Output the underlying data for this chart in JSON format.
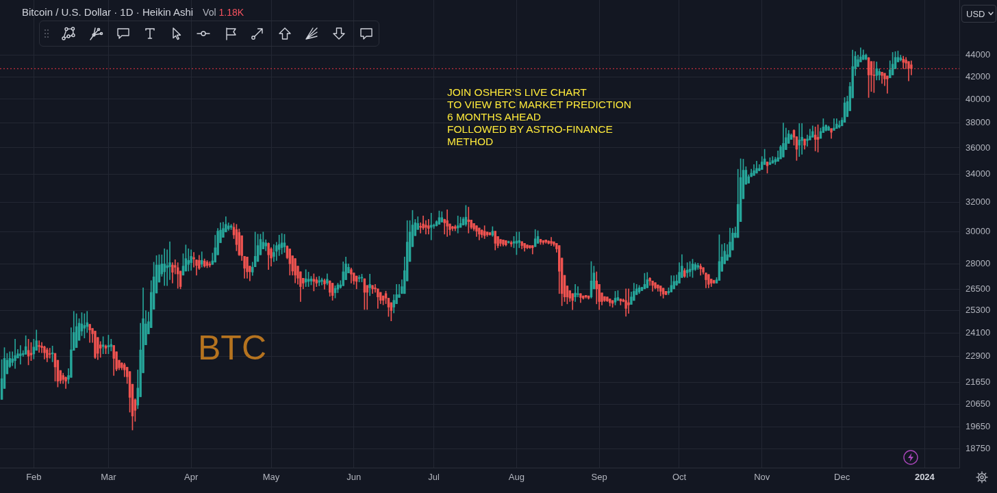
{
  "chart_data": {
    "type": "candlestick",
    "title": "Bitcoin / U.S. Dollar · 1D · Heikin Ashi",
    "annotations": [
      "Vol 1.18K",
      "JOIN OSHER’S LIVE CHART\nTO VIEW BTC MARKET PREDICTION\n6 MONTHS AHEAD\nFOLLOWED BY ASTRO-FINANCE\nMETHOD",
      "BTC",
      "USD"
    ],
    "log": true,
    "grid": true,
    "xlim": [
      "2023-01-19T08:00",
      "2024-01-14"
    ],
    "ylim": [
      18000,
      49600
    ],
    "xticks": [
      {
        "value": "2023-02-01",
        "label": "Feb"
      },
      {
        "value": "2023-03-01",
        "label": "Mar"
      },
      {
        "value": "2023-04-01",
        "label": "Apr"
      },
      {
        "value": "2023-05-01",
        "label": "May"
      },
      {
        "value": "2023-06-01",
        "label": "Jun"
      },
      {
        "value": "2023-07-01",
        "label": "Jul"
      },
      {
        "value": "2023-08-01",
        "label": "Aug"
      },
      {
        "value": "2023-09-01",
        "label": "Sep"
      },
      {
        "value": "2023-10-01",
        "label": "Oct"
      },
      {
        "value": "2023-11-01",
        "label": "Nov"
      },
      {
        "value": "2023-12-01",
        "label": "Dec"
      },
      {
        "value": "2024-01-01",
        "label": "2024"
      }
    ],
    "yticks": [
      18750,
      19650,
      20650,
      21650,
      22900,
      24100,
      25300,
      26500,
      28000,
      30000,
      32000,
      34000,
      36000,
      38000,
      40000,
      42000,
      44000
    ],
    "ref_lines": [
      {
        "axis": "y",
        "value": 42740,
        "color": "#f23645",
        "line_style": "dotted"
      }
    ],
    "x": [
      "2023-01-20",
      "2023-01-21",
      "2023-01-22",
      "2023-01-23",
      "2023-01-24",
      "2023-01-25",
      "2023-01-26",
      "2023-01-27",
      "2023-01-28",
      "2023-01-29",
      "2023-01-30",
      "2023-01-31",
      "2023-02-01",
      "2023-02-02",
      "2023-02-03",
      "2023-02-04",
      "2023-02-05",
      "2023-02-06",
      "2023-02-07",
      "2023-02-08",
      "2023-02-09",
      "2023-02-10",
      "2023-02-11",
      "2023-02-12",
      "2023-02-13",
      "2023-02-14",
      "2023-02-15",
      "2023-02-16",
      "2023-02-17",
      "2023-02-18",
      "2023-02-19",
      "2023-02-20",
      "2023-02-21",
      "2023-02-22",
      "2023-02-23",
      "2023-02-24",
      "2023-02-25",
      "2023-02-26",
      "2023-02-27",
      "2023-02-28",
      "2023-03-01",
      "2023-03-02",
      "2023-03-03",
      "2023-03-04",
      "2023-03-05",
      "2023-03-06",
      "2023-03-07",
      "2023-03-08",
      "2023-03-09",
      "2023-03-10",
      "2023-03-11",
      "2023-03-12",
      "2023-03-13",
      "2023-03-14",
      "2023-03-15",
      "2023-03-16",
      "2023-03-17",
      "2023-03-18",
      "2023-03-19",
      "2023-03-20",
      "2023-03-21",
      "2023-03-22",
      "2023-03-23",
      "2023-03-24",
      "2023-03-25",
      "2023-03-26",
      "2023-03-27",
      "2023-03-28",
      "2023-03-29",
      "2023-03-30",
      "2023-03-31",
      "2023-04-01",
      "2023-04-02",
      "2023-04-03",
      "2023-04-04",
      "2023-04-05",
      "2023-04-06",
      "2023-04-07",
      "2023-04-08",
      "2023-04-09",
      "2023-04-10",
      "2023-04-11",
      "2023-04-12",
      "2023-04-13",
      "2023-04-14",
      "2023-04-15",
      "2023-04-16",
      "2023-04-17",
      "2023-04-18",
      "2023-04-19",
      "2023-04-20",
      "2023-04-21",
      "2023-04-22",
      "2023-04-23",
      "2023-04-24",
      "2023-04-25",
      "2023-04-26",
      "2023-04-27",
      "2023-04-28",
      "2023-04-29",
      "2023-04-30",
      "2023-05-01",
      "2023-05-02",
      "2023-05-03",
      "2023-05-04",
      "2023-05-05",
      "2023-05-06",
      "2023-05-07",
      "2023-05-08",
      "2023-05-09",
      "2023-05-10",
      "2023-05-11",
      "2023-05-12",
      "2023-05-13",
      "2023-05-14",
      "2023-05-15",
      "2023-05-16",
      "2023-05-17",
      "2023-05-18",
      "2023-05-19",
      "2023-05-20",
      "2023-05-21",
      "2023-05-22",
      "2023-05-23",
      "2023-05-24",
      "2023-05-25",
      "2023-05-26",
      "2023-05-27",
      "2023-05-28",
      "2023-05-29",
      "2023-05-30",
      "2023-05-31",
      "2023-06-01",
      "2023-06-02",
      "2023-06-03",
      "2023-06-04",
      "2023-06-05",
      "2023-06-06",
      "2023-06-07",
      "2023-06-08",
      "2023-06-09",
      "2023-06-10",
      "2023-06-11",
      "2023-06-12",
      "2023-06-13",
      "2023-06-14",
      "2023-06-15",
      "2023-06-16",
      "2023-06-17",
      "2023-06-18",
      "2023-06-19",
      "2023-06-20",
      "2023-06-21",
      "2023-06-22",
      "2023-06-23",
      "2023-06-24",
      "2023-06-25",
      "2023-06-26",
      "2023-06-27",
      "2023-06-28",
      "2023-06-29",
      "2023-06-30",
      "2023-07-01",
      "2023-07-02",
      "2023-07-03",
      "2023-07-04",
      "2023-07-05",
      "2023-07-06",
      "2023-07-07",
      "2023-07-08",
      "2023-07-09",
      "2023-07-10",
      "2023-07-11",
      "2023-07-12",
      "2023-07-13",
      "2023-07-14",
      "2023-07-15",
      "2023-07-16",
      "2023-07-17",
      "2023-07-18",
      "2023-07-19",
      "2023-07-20",
      "2023-07-21",
      "2023-07-22",
      "2023-07-23",
      "2023-07-24",
      "2023-07-25",
      "2023-07-26",
      "2023-07-27",
      "2023-07-28",
      "2023-07-29",
      "2023-07-30",
      "2023-07-31",
      "2023-08-01",
      "2023-08-02",
      "2023-08-03",
      "2023-08-04",
      "2023-08-05",
      "2023-08-06",
      "2023-08-07",
      "2023-08-08",
      "2023-08-09",
      "2023-08-10",
      "2023-08-11",
      "2023-08-12",
      "2023-08-13",
      "2023-08-14",
      "2023-08-15",
      "2023-08-16",
      "2023-08-17",
      "2023-08-18",
      "2023-08-19",
      "2023-08-20",
      "2023-08-21",
      "2023-08-22",
      "2023-08-23",
      "2023-08-24",
      "2023-08-25",
      "2023-08-26",
      "2023-08-27",
      "2023-08-28",
      "2023-08-29",
      "2023-08-30",
      "2023-08-31",
      "2023-09-01",
      "2023-09-02",
      "2023-09-03",
      "2023-09-04",
      "2023-09-05",
      "2023-09-06",
      "2023-09-07",
      "2023-09-08",
      "2023-09-09",
      "2023-09-10",
      "2023-09-11",
      "2023-09-12",
      "2023-09-13",
      "2023-09-14",
      "2023-09-15",
      "2023-09-16",
      "2023-09-17",
      "2023-09-18",
      "2023-09-19",
      "2023-09-20",
      "2023-09-21",
      "2023-09-22",
      "2023-09-23",
      "2023-09-24",
      "2023-09-25",
      "2023-09-26",
      "2023-09-27",
      "2023-09-28",
      "2023-09-29",
      "2023-09-30",
      "2023-10-01",
      "2023-10-02",
      "2023-10-03",
      "2023-10-04",
      "2023-10-05",
      "2023-10-06",
      "2023-10-07",
      "2023-10-08",
      "2023-10-09",
      "2023-10-10",
      "2023-10-11",
      "2023-10-12",
      "2023-10-13",
      "2023-10-14",
      "2023-10-15",
      "2023-10-16",
      "2023-10-17",
      "2023-10-18",
      "2023-10-19",
      "2023-10-20",
      "2023-10-21",
      "2023-10-22",
      "2023-10-23",
      "2023-10-24",
      "2023-10-25",
      "2023-10-26",
      "2023-10-27",
      "2023-10-28",
      "2023-10-29",
      "2023-10-30",
      "2023-10-31",
      "2023-11-01",
      "2023-11-02",
      "2023-11-03",
      "2023-11-04",
      "2023-11-05",
      "2023-11-06",
      "2023-11-07",
      "2023-11-08",
      "2023-11-09",
      "2023-11-10",
      "2023-11-11",
      "2023-11-12",
      "2023-11-13",
      "2023-11-14",
      "2023-11-15",
      "2023-11-16",
      "2023-11-17",
      "2023-11-18",
      "2023-11-19",
      "2023-11-20",
      "2023-11-21",
      "2023-11-22",
      "2023-11-23",
      "2023-11-24",
      "2023-11-25",
      "2023-11-26",
      "2023-11-27",
      "2023-11-28",
      "2023-11-29",
      "2023-11-30",
      "2023-12-01",
      "2023-12-02",
      "2023-12-03",
      "2023-12-04",
      "2023-12-05",
      "2023-12-06",
      "2023-12-07",
      "2023-12-08",
      "2023-12-09",
      "2023-12-10",
      "2023-12-11",
      "2023-12-12",
      "2023-12-13",
      "2023-12-14",
      "2023-12-15",
      "2023-12-16",
      "2023-12-17",
      "2023-12-18",
      "2023-12-19",
      "2023-12-20",
      "2023-12-21",
      "2023-12-22",
      "2023-12-23",
      "2023-12-24",
      "2023-12-25",
      "2023-12-26",
      "2023-12-27"
    ],
    "ohlc": [
      [
        20870,
        22750,
        20870,
        21830
      ],
      [
        21370,
        23350,
        21370,
        22810
      ],
      [
        22060,
        23060,
        22060,
        22720
      ],
      [
        22410,
        23140,
        22360,
        22810
      ],
      [
        22610,
        23140,
        22450,
        22790
      ],
      [
        22700,
        23780,
        22320,
        22950
      ],
      [
        22830,
        23260,
        22830,
        23040
      ],
      [
        22940,
        23460,
        22520,
        23040
      ],
      [
        22990,
        23200,
        22900,
        23060
      ],
      [
        23020,
        23960,
        23000,
        23400
      ],
      [
        23210,
        23780,
        22490,
        22920
      ],
      [
        23070,
        23610,
        22700,
        22980
      ],
      [
        23030,
        23780,
        22780,
        23380
      ],
      [
        23210,
        24260,
        23210,
        23700
      ],
      [
        23460,
        23700,
        23110,
        23400
      ],
      [
        23430,
        23610,
        23090,
        23350
      ],
      [
        23390,
        23430,
        22780,
        23090
      ],
      [
        23240,
        23330,
        22640,
        22850
      ],
      [
        23050,
        23320,
        22820,
        23010
      ],
      [
        23030,
        23430,
        22640,
        23090
      ],
      [
        23060,
        23060,
        21710,
        22390
      ],
      [
        22720,
        22720,
        21440,
        21710
      ],
      [
        22220,
        22220,
        21600,
        21730
      ],
      [
        21980,
        22090,
        21600,
        21790
      ],
      [
        21890,
        21920,
        21370,
        21710
      ],
      [
        21800,
        22310,
        21600,
        21980
      ],
      [
        21890,
        24380,
        21890,
        23240
      ],
      [
        23210,
        25260,
        23210,
        24130
      ],
      [
        23350,
        25130,
        23350,
        24440
      ],
      [
        23720,
        24860,
        23720,
        24620
      ],
      [
        24200,
        25190,
        23960,
        24580
      ],
      [
        24350,
        25130,
        23840,
        24500
      ],
      [
        24440,
        25260,
        24130,
        24650
      ],
      [
        24560,
        24560,
        23610,
        24260
      ],
      [
        24340,
        24340,
        23610,
        24060
      ],
      [
        24200,
        24200,
        22800,
        22860
      ],
      [
        23870,
        23870,
        22750,
        23060
      ],
      [
        23490,
        23660,
        22860,
        23320
      ],
      [
        23400,
        23910,
        23040,
        23490
      ],
      [
        23430,
        23490,
        23040,
        23320
      ],
      [
        23380,
        23990,
        23040,
        23460
      ],
      [
        23400,
        23780,
        23180,
        23510
      ],
      [
        23460,
        23460,
        21980,
        22810
      ],
      [
        23140,
        23140,
        22200,
        22280
      ],
      [
        22720,
        22720,
        22250,
        22350
      ],
      [
        22580,
        22600,
        22250,
        22350
      ],
      [
        22500,
        22580,
        21920,
        22250
      ],
      [
        22380,
        22380,
        21600,
        21920
      ],
      [
        22170,
        22170,
        20300,
        20960
      ],
      [
        21570,
        21570,
        19530,
        20130
      ],
      [
        20850,
        20900,
        19900,
        20380
      ],
      [
        20610,
        22250,
        20450,
        21390
      ],
      [
        20990,
        24620,
        20990,
        23230
      ],
      [
        22110,
        26580,
        22110,
        24860
      ],
      [
        23490,
        25300,
        23490,
        24580
      ],
      [
        24050,
        25230,
        24050,
        24700
      ],
      [
        24380,
        27000,
        24380,
        26320
      ],
      [
        25370,
        28100,
        25370,
        27220
      ],
      [
        26280,
        28500,
        26280,
        27930
      ],
      [
        26910,
        28560,
        26910,
        27930
      ],
      [
        27390,
        28550,
        27250,
        28000
      ],
      [
        27520,
        28930,
        26710,
        28000
      ],
      [
        27760,
        28860,
        26710,
        27890
      ],
      [
        27820,
        29370,
        27050,
        28070
      ],
      [
        27930,
        28070,
        26850,
        27490
      ],
      [
        27900,
        28250,
        27390,
        27790
      ],
      [
        27770,
        28070,
        26550,
        27390
      ],
      [
        27560,
        27560,
        26520,
        26650
      ],
      [
        27320,
        28620,
        27320,
        27860
      ],
      [
        27560,
        29170,
        27560,
        28320
      ],
      [
        27960,
        28930,
        27560,
        28210
      ],
      [
        28070,
        28860,
        27600,
        28460
      ],
      [
        28380,
        28700,
        27800,
        28300
      ],
      [
        28240,
        28240,
        27320,
        27900
      ],
      [
        28210,
        28520,
        27650,
        27730
      ],
      [
        27970,
        28740,
        27800,
        28210
      ],
      [
        28170,
        28300,
        27790,
        27860
      ],
      [
        28100,
        28200,
        27760,
        27900
      ],
      [
        28000,
        28130,
        27800,
        27920
      ],
      [
        27960,
        28660,
        27960,
        28180
      ],
      [
        28100,
        29790,
        28100,
        28990
      ],
      [
        28550,
        30230,
        28550,
        30060
      ],
      [
        29310,
        30600,
        29310,
        30120
      ],
      [
        29650,
        30640,
        29650,
        30230
      ],
      [
        30000,
        31010,
        30000,
        30500
      ],
      [
        30200,
        30600,
        30100,
        30400
      ],
      [
        30300,
        30500,
        30150,
        30400
      ],
      [
        30310,
        30580,
        29570,
        29810
      ],
      [
        30160,
        30500,
        28800,
        29190
      ],
      [
        29970,
        30200,
        28500,
        28550
      ],
      [
        29760,
        29760,
        28200,
        28500
      ],
      [
        28460,
        28460,
        27140,
        27730
      ],
      [
        28420,
        28420,
        27140,
        27520
      ],
      [
        27860,
        27860,
        26980,
        27520
      ],
      [
        27500,
        28100,
        27300,
        27800
      ],
      [
        27820,
        30000,
        27820,
        28460
      ],
      [
        28140,
        29860,
        28140,
        29130
      ],
      [
        28550,
        29860,
        28550,
        29520
      ],
      [
        28920,
        30000,
        28920,
        29340
      ],
      [
        29100,
        29500,
        28800,
        29300
      ],
      [
        29270,
        29300,
        27650,
        28550
      ],
      [
        28920,
        29000,
        27860,
        28350
      ],
      [
        28450,
        29200,
        28130,
        28700
      ],
      [
        28770,
        29340,
        28200,
        29130
      ],
      [
        28880,
        29800,
        28500,
        29200
      ],
      [
        29000,
        29900,
        28600,
        29300
      ],
      [
        29050,
        29850,
        28700,
        29300
      ],
      [
        29090,
        29120,
        28300,
        28370
      ],
      [
        28920,
        28920,
        27320,
        28000
      ],
      [
        28490,
        28490,
        27320,
        27560
      ],
      [
        28320,
        28320,
        26860,
        27320
      ],
      [
        27860,
        27860,
        26790,
        27140
      ],
      [
        27520,
        27520,
        25800,
        26650
      ],
      [
        27140,
        27140,
        26520,
        26850
      ],
      [
        26910,
        27650,
        26650,
        27110
      ],
      [
        26950,
        27500,
        26650,
        27080
      ],
      [
        26970,
        27250,
        26750,
        27100
      ],
      [
        27080,
        27400,
        26400,
        26950
      ],
      [
        27050,
        27200,
        26650,
        26850
      ],
      [
        26900,
        27250,
        26700,
        27000
      ],
      [
        26950,
        27150,
        26750,
        27050
      ],
      [
        27000,
        27100,
        26500,
        26800
      ],
      [
        26850,
        27400,
        26750,
        27080
      ],
      [
        26980,
        27000,
        26100,
        26320
      ],
      [
        26850,
        26850,
        25870,
        26140
      ],
      [
        26300,
        26700,
        26000,
        26550
      ],
      [
        26500,
        26850,
        26300,
        26750
      ],
      [
        26600,
        27000,
        26550,
        26750
      ],
      [
        26700,
        28120,
        26700,
        27520
      ],
      [
        27050,
        28420,
        27050,
        28000
      ],
      [
        27450,
        28000,
        27450,
        27790
      ],
      [
        27650,
        27750,
        26850,
        27380
      ],
      [
        27450,
        27450,
        26780,
        26980
      ],
      [
        27270,
        27270,
        26520,
        26950
      ],
      [
        27120,
        27310,
        26920,
        27180
      ],
      [
        27150,
        27380,
        26920,
        27200
      ],
      [
        27110,
        27110,
        25360,
        26320
      ],
      [
        26720,
        26720,
        25360,
        26320
      ],
      [
        26580,
        27380,
        26130,
        26780
      ],
      [
        26720,
        26720,
        26250,
        26520
      ],
      [
        26580,
        26780,
        26320,
        26520
      ],
      [
        26520,
        26520,
        25420,
        26060
      ],
      [
        26320,
        26320,
        25680,
        25870
      ],
      [
        26120,
        26120,
        25620,
        25870
      ],
      [
        26250,
        26390,
        25680,
        25990
      ],
      [
        25990,
        25990,
        24980,
        25490
      ],
      [
        25740,
        25740,
        24740,
        25300
      ],
      [
        25490,
        26190,
        25170,
        25870
      ],
      [
        25680,
        26780,
        25680,
        26190
      ],
      [
        26030,
        26780,
        26030,
        26190
      ],
      [
        26250,
        27050,
        26250,
        26650
      ],
      [
        26250,
        28420,
        26250,
        27590
      ],
      [
        26980,
        30750,
        26980,
        29350
      ],
      [
        28140,
        30750,
        28140,
        30000
      ],
      [
        29060,
        31440,
        29060,
        30460
      ],
      [
        29760,
        30830,
        29760,
        30610
      ],
      [
        30160,
        31010,
        30160,
        30560
      ],
      [
        30380,
        30610,
        29930,
        30300
      ],
      [
        30530,
        31060,
        30150,
        30260
      ],
      [
        30450,
        30750,
        29860,
        30300
      ],
      [
        30410,
        30830,
        29860,
        30230
      ],
      [
        30300,
        31250,
        29490,
        30450
      ],
      [
        30380,
        30530,
        30230,
        30450
      ],
      [
        30410,
        30750,
        30380,
        30680
      ],
      [
        30500,
        31400,
        30500,
        30950
      ],
      [
        30650,
        31350,
        30650,
        30950
      ],
      [
        30830,
        30850,
        29860,
        30600
      ],
      [
        30750,
        31480,
        29710,
        30380
      ],
      [
        30530,
        30530,
        29790,
        30150
      ],
      [
        30350,
        30380,
        30080,
        30230
      ],
      [
        30350,
        30450,
        30080,
        30230
      ],
      [
        30260,
        31060,
        29930,
        30410
      ],
      [
        30300,
        30980,
        30300,
        30560
      ],
      [
        30450,
        30980,
        30450,
        30860
      ],
      [
        30500,
        31780,
        30380,
        30980
      ],
      [
        30800,
        31660,
        29930,
        30680
      ],
      [
        30790,
        30790,
        30200,
        30300
      ],
      [
        30560,
        30560,
        30080,
        30200
      ],
      [
        30410,
        30410,
        29710,
        30050
      ],
      [
        30260,
        30260,
        29490,
        29860
      ],
      [
        30110,
        30160,
        29640,
        29820
      ],
      [
        30050,
        30410,
        29570,
        29760
      ],
      [
        30000,
        30000,
        29710,
        29820
      ],
      [
        29960,
        29960,
        29790,
        29820
      ],
      [
        29790,
        30350,
        29710,
        30050
      ],
      [
        30050,
        30050,
        28850,
        29270
      ],
      [
        29710,
        29710,
        28990,
        29130
      ],
      [
        29520,
        29520,
        29100,
        29270
      ],
      [
        29490,
        29490,
        29100,
        29200
      ],
      [
        29450,
        29450,
        29100,
        29170
      ],
      [
        29320,
        29420,
        29280,
        29380
      ],
      [
        29320,
        29420,
        29060,
        29230
      ],
      [
        29280,
        29710,
        28990,
        29380
      ],
      [
        29270,
        30000,
        28560,
        29420
      ],
      [
        29320,
        30000,
        28990,
        29450
      ],
      [
        29380,
        29380,
        28920,
        29130
      ],
      [
        29270,
        29270,
        28770,
        28990
      ],
      [
        29170,
        29170,
        28920,
        28990
      ],
      [
        29130,
        29130,
        28950,
        28990
      ],
      [
        29130,
        29130,
        28600,
        28990
      ],
      [
        29060,
        30160,
        29060,
        29560
      ],
      [
        29270,
        30080,
        29270,
        29710
      ],
      [
        29530,
        29530,
        29200,
        29350
      ],
      [
        29450,
        29450,
        29200,
        29320
      ],
      [
        29490,
        29490,
        29270,
        29350
      ],
      [
        29420,
        29440,
        29230,
        29270
      ],
      [
        29400,
        29660,
        29130,
        29270
      ],
      [
        29370,
        29370,
        29090,
        29200
      ],
      [
        29270,
        29270,
        28710,
        28920
      ],
      [
        29130,
        29130,
        26250,
        27550
      ],
      [
        28350,
        28350,
        25570,
        26250
      ],
      [
        27310,
        27310,
        25800,
        26060
      ],
      [
        26690,
        26690,
        25670,
        26060
      ],
      [
        26420,
        26420,
        25800,
        25990
      ],
      [
        26250,
        26250,
        25350,
        25860
      ],
      [
        26060,
        26780,
        25800,
        26280
      ],
      [
        26190,
        26650,
        26060,
        26250
      ],
      [
        26250,
        26250,
        25740,
        26030
      ],
      [
        26120,
        26120,
        25930,
        25990
      ],
      [
        26150,
        26150,
        25990,
        26060
      ],
      [
        26120,
        26120,
        25930,
        25990
      ],
      [
        26060,
        28140,
        25990,
        26980
      ],
      [
        26520,
        27860,
        26520,
        27450
      ],
      [
        26980,
        27520,
        25670,
        26520
      ],
      [
        26780,
        26780,
        25350,
        25800
      ],
      [
        26290,
        26290,
        25610,
        25800
      ],
      [
        26080,
        26080,
        25800,
        25860
      ],
      [
        26060,
        26060,
        25800,
        25830
      ],
      [
        25950,
        25950,
        25550,
        25740
      ],
      [
        25860,
        25860,
        25480,
        25700
      ],
      [
        25770,
        26380,
        25610,
        25990
      ],
      [
        25860,
        26420,
        25860,
        26030
      ],
      [
        25950,
        25950,
        25610,
        25830
      ],
      [
        25900,
        25950,
        25780,
        25810
      ],
      [
        25860,
        26520,
        24990,
        25420
      ],
      [
        25740,
        26520,
        25150,
        25610
      ],
      [
        25640,
        26350,
        25640,
        26060
      ],
      [
        25860,
        26850,
        25860,
        26380
      ],
      [
        26190,
        26780,
        26190,
        26520
      ],
      [
        26340,
        26720,
        26250,
        26580
      ],
      [
        26420,
        26610,
        26420,
        26610
      ],
      [
        26520,
        27430,
        26520,
        26780
      ],
      [
        26580,
        27480,
        26580,
        27050
      ],
      [
        27140,
        27180,
        26720,
        26980
      ],
      [
        26980,
        26980,
        26380,
        26720
      ],
      [
        26880,
        26880,
        26520,
        26580
      ],
      [
        26750,
        26750,
        26380,
        26560
      ],
      [
        26690,
        26690,
        26120,
        26380
      ],
      [
        26560,
        26560,
        25990,
        26220
      ],
      [
        26380,
        26380,
        26190,
        26190
      ],
      [
        26290,
        26580,
        26190,
        26380
      ],
      [
        26340,
        27290,
        26340,
        26720
      ],
      [
        26520,
        27290,
        26520,
        26950
      ],
      [
        26740,
        27330,
        26720,
        26980
      ],
      [
        26850,
        28070,
        26850,
        27490
      ],
      [
        27180,
        28560,
        27180,
        27860
      ],
      [
        27590,
        27720,
        27180,
        27250
      ],
      [
        27460,
        28070,
        27180,
        27630
      ],
      [
        27520,
        28140,
        27250,
        27680
      ],
      [
        27630,
        28280,
        27180,
        28000
      ],
      [
        27660,
        28070,
        27590,
        27960
      ],
      [
        27790,
        28040,
        27660,
        27900
      ],
      [
        27860,
        28000,
        27320,
        27690
      ],
      [
        27770,
        27770,
        27380,
        27500
      ],
      [
        27450,
        27450,
        26580,
        27050
      ],
      [
        27360,
        27360,
        26580,
        26780
      ],
      [
        27090,
        27090,
        26650,
        26850
      ],
      [
        27010,
        27030,
        26830,
        26860
      ],
      [
        26850,
        27180,
        26850,
        27050
      ],
      [
        27010,
        29820,
        27010,
        28140
      ],
      [
        27550,
        29200,
        27550,
        28420
      ],
      [
        28000,
        29270,
        28000,
        28780
      ],
      [
        28210,
        29200,
        28210,
        28560
      ],
      [
        28420,
        30260,
        28420,
        29350
      ],
      [
        28850,
        30230,
        28850,
        29930
      ],
      [
        29640,
        30330,
        29640,
        29930
      ],
      [
        29640,
        34370,
        29640,
        31850
      ],
      [
        30680,
        35160,
        30680,
        33760
      ],
      [
        32240,
        35130,
        32240,
        34300
      ],
      [
        33270,
        34560,
        33270,
        34300
      ],
      [
        33350,
        33960,
        33350,
        33820
      ],
      [
        33820,
        34370,
        33820,
        34080
      ],
      [
        33910,
        34720,
        33910,
        34260
      ],
      [
        34080,
        34980,
        34080,
        34430
      ],
      [
        34260,
        34720,
        34260,
        34430
      ],
      [
        34350,
        35330,
        34350,
        34920
      ],
      [
        34720,
        35890,
        34720,
        35150
      ],
      [
        34920,
        34920,
        34080,
        34630
      ],
      [
        34720,
        35240,
        34720,
        34870
      ],
      [
        34820,
        35330,
        34820,
        35020
      ],
      [
        34920,
        35280,
        34720,
        35110
      ],
      [
        34960,
        35760,
        34960,
        35240
      ],
      [
        35150,
        36200,
        35150,
        36080
      ],
      [
        35290,
        38000,
        35290,
        36350
      ],
      [
        35860,
        37580,
        35860,
        36810
      ],
      [
        36350,
        37390,
        36350,
        37110
      ],
      [
        36660,
        37110,
        36660,
        37020
      ],
      [
        37390,
        37450,
        36210,
        36840
      ],
      [
        36880,
        36880,
        35030,
        35890
      ],
      [
        36210,
        37950,
        35330,
        36620
      ],
      [
        36570,
        37950,
        35500,
        36840
      ],
      [
        36700,
        36700,
        35890,
        36210
      ],
      [
        36570,
        37020,
        36120,
        36700
      ],
      [
        36620,
        37490,
        36620,
        36930
      ],
      [
        36840,
        37760,
        36840,
        37300
      ],
      [
        37020,
        37670,
        35760,
        36660
      ],
      [
        36840,
        37850,
        35670,
        36660
      ],
      [
        36750,
        37580,
        36750,
        37300
      ],
      [
        37210,
        38350,
        37210,
        37670
      ],
      [
        37390,
        37850,
        37330,
        37800
      ],
      [
        37390,
        37760,
        37390,
        37670
      ],
      [
        37540,
        37540,
        36750,
        37240
      ],
      [
        37390,
        38350,
        37390,
        37580
      ],
      [
        37540,
        38350,
        37540,
        37910
      ],
      [
        37670,
        38170,
        37580,
        37800
      ],
      [
        37760,
        38440,
        37760,
        38230
      ],
      [
        38050,
        40150,
        38050,
        39690
      ],
      [
        38520,
        40280,
        38520,
        39800
      ],
      [
        39010,
        41490,
        39010,
        41120
      ],
      [
        40120,
        44500,
        40120,
        42940
      ],
      [
        42740,
        44350,
        42110,
        43910
      ],
      [
        42940,
        44030,
        42940,
        43590
      ],
      [
        43370,
        44720,
        43370,
        43850
      ],
      [
        43590,
        44520,
        43590,
        44020
      ],
      [
        43640,
        44130,
        43560,
        44020
      ],
      [
        43770,
        43800,
        40150,
        42160
      ],
      [
        43410,
        43410,
        40680,
        42160
      ],
      [
        42170,
        43420,
        40580,
        42110
      ],
      [
        42110,
        43370,
        41700,
        42740
      ],
      [
        42160,
        42740,
        41700,
        42490
      ],
      [
        42420,
        42420,
        41390,
        42110
      ],
      [
        42320,
        42320,
        41190,
        41800
      ],
      [
        42070,
        42070,
        40520,
        41800
      ],
      [
        41900,
        43480,
        41900,
        42630
      ],
      [
        42160,
        44280,
        42160,
        43160
      ],
      [
        42740,
        44350,
        42740,
        43800
      ],
      [
        43370,
        44410,
        43370,
        43800
      ],
      [
        43550,
        44020,
        43450,
        43760
      ],
      [
        43630,
        43910,
        42740,
        43330
      ],
      [
        43550,
        43800,
        42740,
        43260
      ],
      [
        43410,
        43410,
        41620,
        42780
      ],
      [
        43100,
        43480,
        42160,
        42740
      ]
    ]
  }
}
